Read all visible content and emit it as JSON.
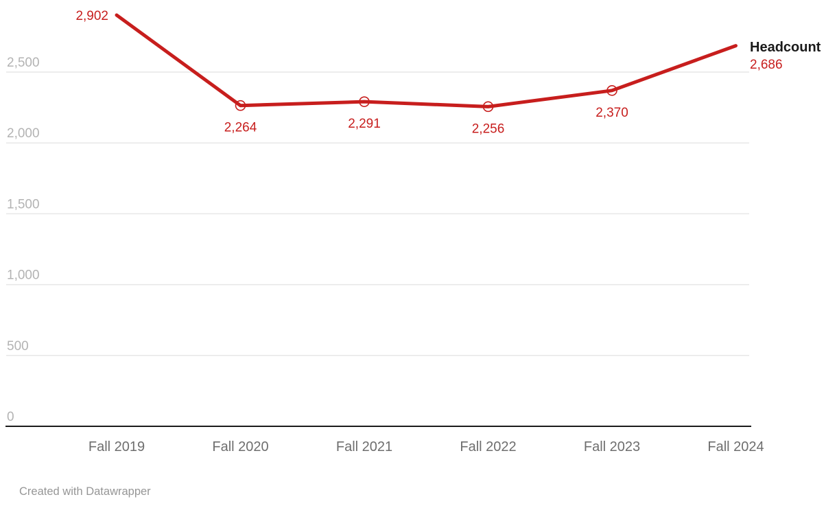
{
  "chart_data": {
    "type": "line",
    "title": "",
    "categories": [
      "Fall 2019",
      "Fall 2020",
      "Fall 2021",
      "Fall 2022",
      "Fall 2023",
      "Fall 2024"
    ],
    "series": [
      {
        "name": "Headcount",
        "values": [
          2902,
          2264,
          2291,
          2256,
          2370,
          2686
        ]
      }
    ],
    "value_labels": [
      "2,902",
      "2,264",
      "2,291",
      "2,256",
      "2,370",
      "2,686"
    ],
    "label_placements": [
      "left",
      "below",
      "below",
      "below",
      "below",
      "legend"
    ],
    "marker_indices": [
      1,
      2,
      3,
      4
    ],
    "y_ticks": [
      {
        "v": 0,
        "label": "0"
      },
      {
        "v": 500,
        "label": "500"
      },
      {
        "v": 1000,
        "label": "1,000"
      },
      {
        "v": 1500,
        "label": "1,500"
      },
      {
        "v": 2000,
        "label": "2,000"
      },
      {
        "v": 2500,
        "label": "2,500"
      }
    ],
    "ylim": [
      0,
      3000
    ],
    "grid": true,
    "legend_position": "right of line end",
    "legend": {
      "name": "Headcount",
      "value": "2,686"
    },
    "colors": {
      "line": "#c71e1d",
      "value_label": "#c71e1d",
      "grid": "#e7e7e7",
      "axis": "#1a1a1a",
      "y_tick": "#b3b3b3",
      "x_tick": "#6e6e6e",
      "legend_name": "#1a1a1a",
      "footer": "#969696"
    }
  },
  "footer": {
    "attribution": "Created with Datawrapper"
  }
}
